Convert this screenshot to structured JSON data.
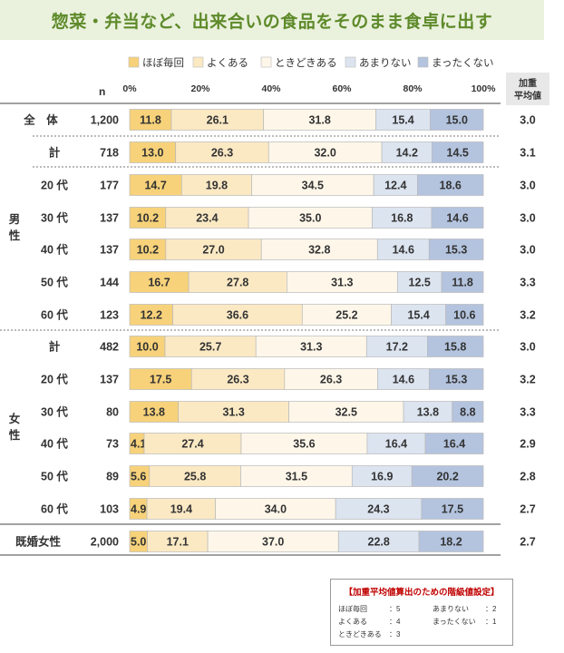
{
  "title": "惣菜・弁当など、出来合いの食品をそのまま食卓に出す",
  "weighted_header_line1": "加重",
  "weighted_header_line2": "平均値",
  "n_label": "n",
  "legend": [
    {
      "label": "ほぼ毎回",
      "color": "#f7d27a"
    },
    {
      "label": "よくある",
      "color": "#fbe9c4"
    },
    {
      "label": "ときどきある",
      "color": "#fef7e9"
    },
    {
      "label": "あまりない",
      "color": "#dce4f0"
    },
    {
      "label": "まったくない",
      "color": "#b4c4df"
    }
  ],
  "chart_data": {
    "type": "bar",
    "stacked": true,
    "orientation": "horizontal",
    "x_ticks": [
      "0%",
      "20%",
      "40%",
      "60%",
      "80%",
      "100%"
    ],
    "xlim": [
      0,
      100
    ],
    "series_names": [
      "ほぼ毎回",
      "よくある",
      "ときどきある",
      "あまりない",
      "まったくない"
    ],
    "rows": [
      {
        "group": "全　体",
        "label": "",
        "n": "1,200",
        "values": [
          11.8,
          26.1,
          31.8,
          15.4,
          15.0
        ],
        "avg": "3.0"
      },
      {
        "group": "男性",
        "label": "計",
        "n": "718",
        "values": [
          13.0,
          26.3,
          32.0,
          14.2,
          14.5
        ],
        "avg": "3.1"
      },
      {
        "group": "男性",
        "label": "20 代",
        "n": "177",
        "values": [
          14.7,
          19.8,
          34.5,
          12.4,
          18.6
        ],
        "avg": "3.0"
      },
      {
        "group": "男性",
        "label": "30 代",
        "n": "137",
        "values": [
          10.2,
          23.4,
          35.0,
          16.8,
          14.6
        ],
        "avg": "3.0"
      },
      {
        "group": "男性",
        "label": "40 代",
        "n": "137",
        "values": [
          10.2,
          27.0,
          32.8,
          14.6,
          15.3
        ],
        "avg": "3.0"
      },
      {
        "group": "男性",
        "label": "50 代",
        "n": "144",
        "values": [
          16.7,
          27.8,
          31.3,
          12.5,
          11.8
        ],
        "avg": "3.3"
      },
      {
        "group": "男性",
        "label": "60 代",
        "n": "123",
        "values": [
          12.2,
          36.6,
          25.2,
          15.4,
          10.6
        ],
        "avg": "3.2"
      },
      {
        "group": "女性",
        "label": "計",
        "n": "482",
        "values": [
          10.0,
          25.7,
          31.3,
          17.2,
          15.8
        ],
        "avg": "3.0"
      },
      {
        "group": "女性",
        "label": "20 代",
        "n": "137",
        "values": [
          17.5,
          26.3,
          26.3,
          14.6,
          15.3
        ],
        "avg": "3.2"
      },
      {
        "group": "女性",
        "label": "30 代",
        "n": "80",
        "values": [
          13.8,
          31.3,
          32.5,
          13.8,
          8.8
        ],
        "avg": "3.3"
      },
      {
        "group": "女性",
        "label": "40 代",
        "n": "73",
        "values": [
          4.1,
          27.4,
          35.6,
          16.4,
          16.4
        ],
        "avg": "2.9"
      },
      {
        "group": "女性",
        "label": "50 代",
        "n": "89",
        "values": [
          5.6,
          25.8,
          31.5,
          16.9,
          20.2
        ],
        "avg": "2.8"
      },
      {
        "group": "女性",
        "label": "60 代",
        "n": "103",
        "values": [
          4.9,
          19.4,
          34.0,
          24.3,
          17.5
        ],
        "avg": "2.7"
      },
      {
        "group": "既婚女性",
        "label": "",
        "n": "2,000",
        "values": [
          5.0,
          17.1,
          37.0,
          22.8,
          18.2
        ],
        "avg": "2.7"
      }
    ],
    "group_labels": [
      {
        "text": "男\n性"
      },
      {
        "text": "女\n性"
      }
    ]
  },
  "note": {
    "title": "【加重平均値算出のための階級値設定】",
    "items": [
      {
        "label": "ほぼ毎回",
        "value": "：5"
      },
      {
        "label": "よくある",
        "value": "：4"
      },
      {
        "label": "ときどきある",
        "value": "：3"
      },
      {
        "label": "あまりない",
        "value": "：2"
      },
      {
        "label": "まったくない",
        "value": "：1"
      }
    ]
  }
}
